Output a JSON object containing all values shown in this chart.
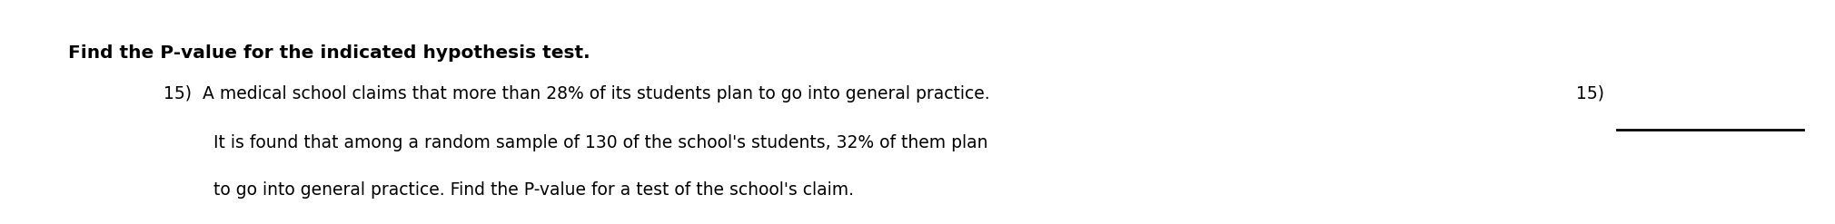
{
  "background_color": "#ffffff",
  "heading": "Find the P-value for the indicated hypothesis test.",
  "heading_fontsize": 14.5,
  "text_fontsize": 13.5,
  "item_number_right": "15)",
  "line1": "15)  A medical school claims that more than 28% of its students plan to go into general practice.",
  "line2": "It is found that among a random sample of 130 of the school's students, 32% of them plan",
  "line3": "to go into general practice. Find the P-value for a test of the school's claim.",
  "line_color": "#000000",
  "text_color": "#000000",
  "fig_width": 20.2,
  "fig_height": 2.47,
  "dpi": 100
}
